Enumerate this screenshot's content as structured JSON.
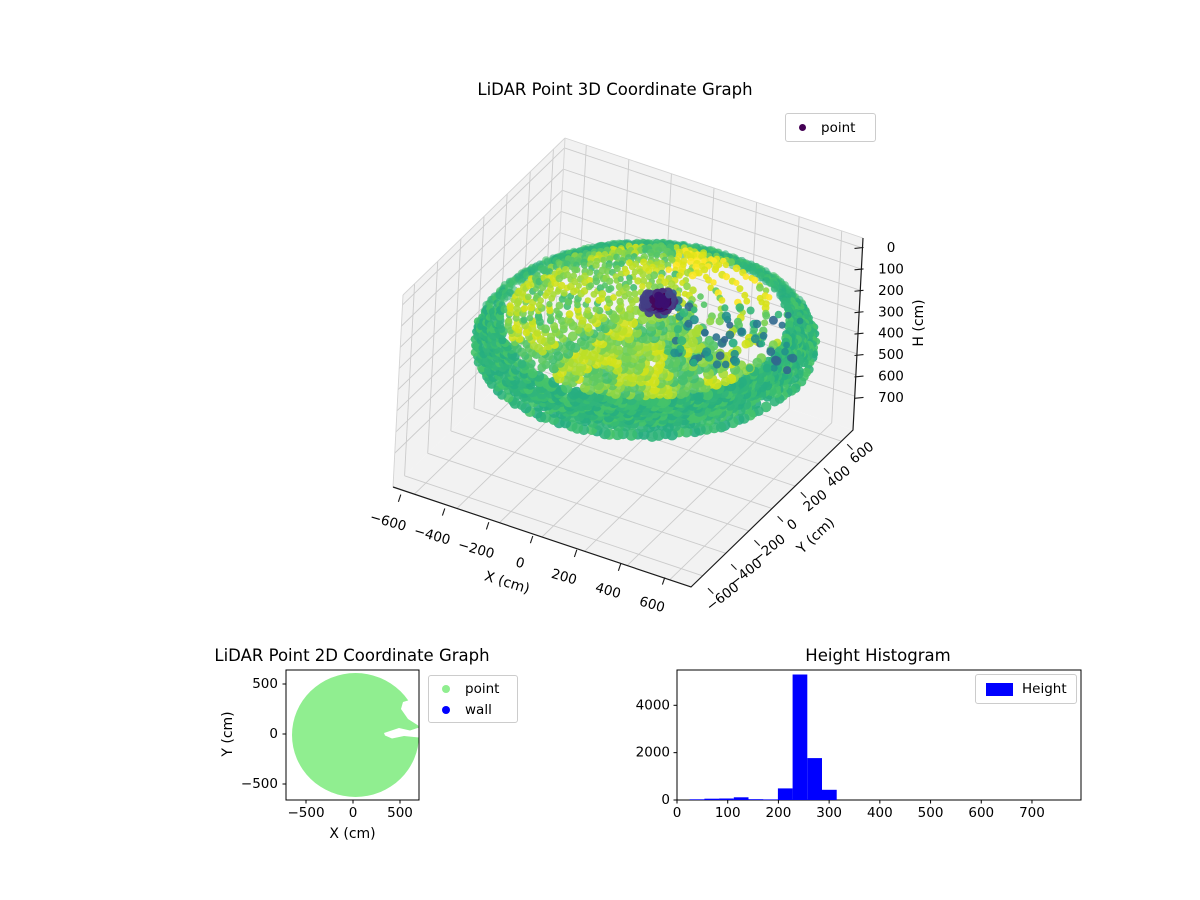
{
  "plot3d": {
    "title": "LiDAR Point 3D Coordinate Graph",
    "xlabel": "X (cm)",
    "ylabel": "Y (cm)",
    "zlabel": "H (cm)",
    "xticks": [
      "−600",
      "−400",
      "−200",
      "0",
      "200",
      "400",
      "600"
    ],
    "yticks": [
      "600",
      "400",
      "200",
      "0",
      "−200",
      "−400",
      "−600"
    ],
    "zticks": [
      "0",
      "100",
      "200",
      "300",
      "400",
      "500",
      "600",
      "700"
    ],
    "legend": {
      "label": "point",
      "color": "#440154"
    }
  },
  "plot2d": {
    "title": "LiDAR Point 2D Coordinate Graph",
    "xlabel": "X (cm)",
    "ylabel": "Y (cm)",
    "xticks": [
      "−500",
      "0",
      "500"
    ],
    "yticks": [
      "500",
      "0",
      "−500"
    ],
    "legend": {
      "items": [
        {
          "label": "point",
          "color": "#90ee90"
        },
        {
          "label": "wall",
          "color": "#0000ff"
        }
      ]
    }
  },
  "hist": {
    "title": "Height Histogram",
    "xticks": [
      "0",
      "100",
      "200",
      "300",
      "400",
      "500",
      "600",
      "700"
    ],
    "yticks": [
      "0",
      "2000",
      "4000"
    ],
    "legend": {
      "label": "Height",
      "color": "#0000ff"
    }
  },
  "chart_data": [
    {
      "type": "scatter3d",
      "title": "LiDAR Point 3D Coordinate Graph",
      "xlabel": "X (cm)",
      "ylabel": "Y (cm)",
      "zlabel": "H (cm)",
      "xlim": [
        -700,
        700
      ],
      "ylim": [
        -700,
        700
      ],
      "zlim": [
        0,
        700
      ],
      "z_axis_inverted": true,
      "xticks": [
        -600,
        -400,
        -200,
        0,
        200,
        400,
        600
      ],
      "yticks": [
        600,
        400,
        200,
        0,
        -200,
        -400,
        -600
      ],
      "zticks": [
        0,
        100,
        200,
        300,
        400,
        500,
        600,
        700
      ],
      "colormap": "viridis",
      "grid": true,
      "pane_color": "#f2f2f2",
      "legend": [
        {
          "label": "point",
          "marker_color": "#440154"
        }
      ],
      "point_cloud": {
        "description": "Dome-shaped LiDAR sweep of concentric circular scan rings, radius up to ~650 cm around origin; bulk of points near H=240 cm (green/yellow-green in viridis), bright yellow band on upper-right inner region, dense dark-purple/blue cluster (tall object, H=0-150 cm) right of center near (x=100,y=150), scattered teal/blue points trailing toward +X, large gaps in rings on the +X side",
        "approx_radius_cm": 650,
        "dominant_height_cm": 240,
        "cluster_height_range_cm": [
          0,
          150
        ]
      }
    },
    {
      "type": "scatter",
      "title": "LiDAR Point 2D Coordinate Graph",
      "xlabel": "X (cm)",
      "ylabel": "Y (cm)",
      "xlim": [
        -710,
        700
      ],
      "ylim": [
        -660,
        640
      ],
      "xticks": [
        -500,
        0,
        500
      ],
      "yticks": [
        500,
        0,
        -500
      ],
      "series": [
        {
          "name": "point",
          "color": "#90ee90",
          "shape": "filled disk of dense points, radius ~650 cm centered near (20,0), white notches bitten out on +X side near y=0 and upper-right edge"
        },
        {
          "name": "wall",
          "color": "#0000ff",
          "points": "none visible"
        }
      ],
      "legend_position": "upper right, outside axes"
    },
    {
      "type": "histogram",
      "title": "Height Histogram",
      "series_label": "Height",
      "color": "#0000ff",
      "bin_edges": [
        25,
        54,
        83,
        112,
        141,
        170,
        199,
        228,
        257,
        286,
        315
      ],
      "counts": [
        30,
        55,
        65,
        115,
        35,
        25,
        490,
        5300,
        1770,
        430
      ],
      "xticks": [
        0,
        100,
        200,
        300,
        400,
        500,
        600,
        700
      ],
      "yticks": [
        0,
        2000,
        4000
      ],
      "xlim": [
        -5,
        795
      ],
      "ylim": [
        0,
        5490
      ],
      "legend_position": "upper right"
    }
  ]
}
